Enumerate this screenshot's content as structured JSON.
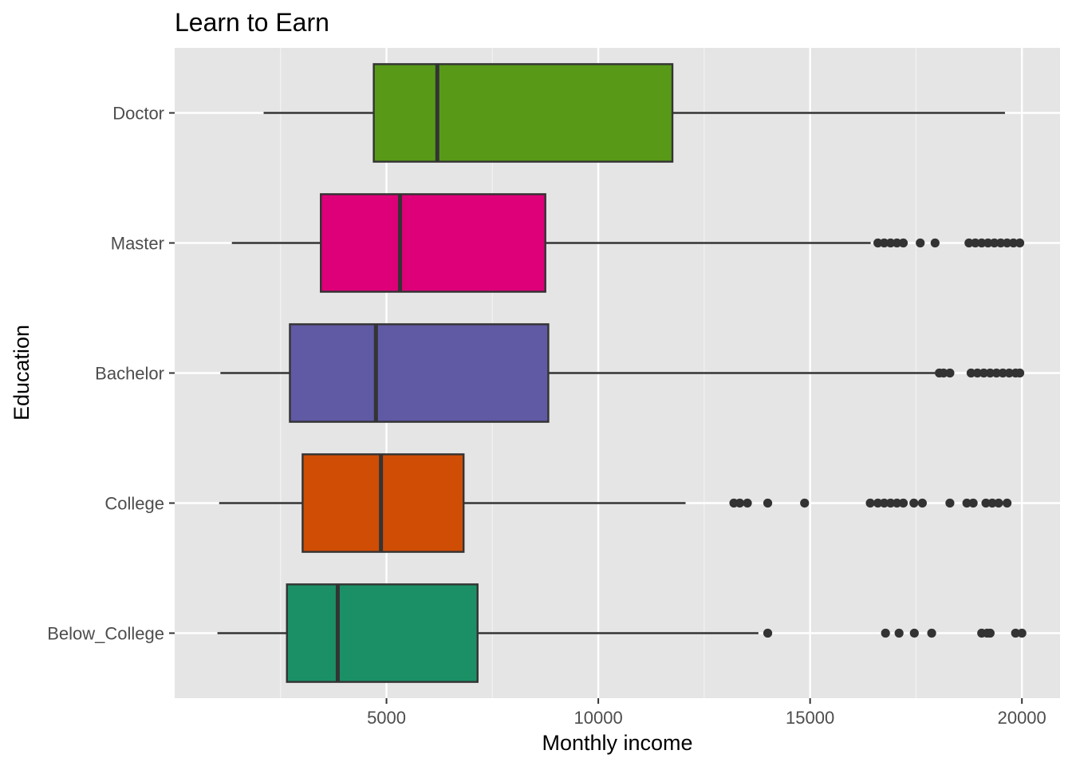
{
  "chart_data": {
    "type": "boxplot",
    "orientation": "horizontal",
    "title": "Learn to Earn",
    "xlabel": "Monthly income",
    "ylabel": "Education",
    "xlim": [
      0,
      20900
    ],
    "x_ticks": [
      5000,
      10000,
      15000,
      20000
    ],
    "x_tick_labels": [
      "5000",
      "10000",
      "15000",
      "20000"
    ],
    "grid": true,
    "legend": "none",
    "categories": [
      "Below_College",
      "College",
      "Bachelor",
      "Master",
      "Doctor"
    ],
    "series": [
      {
        "category": "Below_College",
        "color": "#1b9066",
        "min": 1009,
        "q1": 2650,
        "median": 3850,
        "q3": 7150,
        "max": 13780,
        "outliers": [
          14000,
          16780,
          17100,
          17460,
          17870,
          19050,
          19180,
          19250,
          19850,
          20000
        ]
      },
      {
        "category": "College",
        "color": "#d04d05",
        "min": 1050,
        "q1": 3020,
        "median": 4870,
        "q3": 6820,
        "max": 12060,
        "outliers": [
          13200,
          13340,
          13520,
          14000,
          14870,
          16420,
          16600,
          16750,
          16900,
          17050,
          17200,
          17450,
          17650,
          18300,
          18700,
          18850,
          19150,
          19300,
          19450,
          19650
        ]
      },
      {
        "category": "Bachelor",
        "color": "#6059a4",
        "min": 1080,
        "q1": 2720,
        "median": 4750,
        "q3": 8820,
        "max": 17950,
        "outliers": [
          18050,
          18150,
          18300,
          18800,
          18950,
          19100,
          19250,
          19400,
          19550,
          19700,
          19850,
          19950
        ]
      },
      {
        "category": "Master",
        "color": "#dd0078",
        "min": 1350,
        "q1": 3450,
        "median": 5320,
        "q3": 8750,
        "max": 16430,
        "outliers": [
          16600,
          16750,
          16900,
          17050,
          17200,
          17600,
          17950,
          18750,
          18900,
          19050,
          19200,
          19350,
          19500,
          19650,
          19800,
          19950
        ]
      },
      {
        "category": "Doctor",
        "color": "#589a18",
        "min": 2100,
        "q1": 4700,
        "median": 6200,
        "q3": 11750,
        "max": 19600,
        "outliers": []
      }
    ]
  }
}
